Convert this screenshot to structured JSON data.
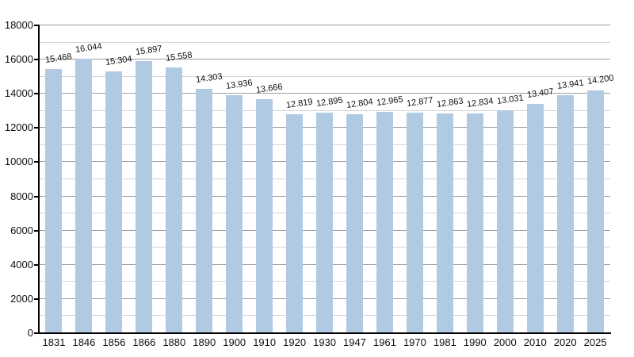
{
  "chart_data": {
    "type": "bar",
    "title": "",
    "xlabel": "",
    "ylabel": "",
    "categories": [
      "1831",
      "1846",
      "1856",
      "1866",
      "1880",
      "1890",
      "1900",
      "1910",
      "1920",
      "1930",
      "1947",
      "1961",
      "1970",
      "1981",
      "1990",
      "2000",
      "2010",
      "2020",
      "2025"
    ],
    "values": [
      15468,
      16044,
      15304,
      15897,
      15558,
      14303,
      13936,
      13666,
      12819,
      12895,
      12804,
      12965,
      12877,
      12863,
      12834,
      13031,
      13407,
      13941,
      14200
    ],
    "value_labels": [
      "15.468",
      "16.044",
      "15.304",
      "15.897",
      "15.558",
      "14.303",
      "13.936",
      "13.666",
      "12.819",
      "12.895",
      "12.804",
      "12.965",
      "12.877",
      "12.863",
      "12.834",
      "13.031",
      "13.407",
      "13.941",
      "14.200"
    ],
    "ylim": [
      0,
      18000
    ],
    "yticks": [
      0,
      2000,
      4000,
      6000,
      8000,
      10000,
      12000,
      14000,
      16000,
      18000
    ],
    "ytick_labels": [
      "0",
      "2000",
      "4000",
      "6000",
      "8000",
      "10000",
      "12000",
      "14000",
      "16000",
      "18000"
    ],
    "minor_grid_step": 1000,
    "grid": true,
    "legend_visible": false,
    "colors": {
      "bar": "#b1cae4",
      "major_grid": "#9e9e9e",
      "minor_grid": "#d4d4d4",
      "axis": "#000000",
      "text": "#111111",
      "background": "#ffffff"
    }
  }
}
